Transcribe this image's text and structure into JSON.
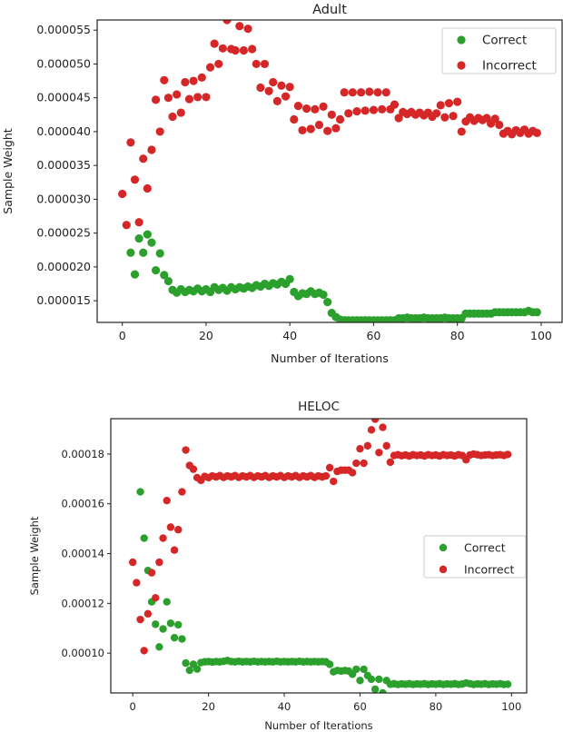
{
  "chart_data": [
    {
      "type": "scatter",
      "title": "Adult",
      "xlabel": "Number of Iterations",
      "ylabel": "Sample Weight",
      "xlim": [
        -6,
        105
      ],
      "ylim": [
        1.18e-05,
        5.65e-05
      ],
      "xticks": [
        0,
        20,
        40,
        60,
        80,
        100
      ],
      "xtick_labels": [
        "0",
        "20",
        "40",
        "60",
        "80",
        "100"
      ],
      "yticks": [
        1.5e-05,
        2e-05,
        2.5e-05,
        3e-05,
        3.5e-05,
        4e-05,
        4.5e-05,
        5e-05,
        5.5e-05
      ],
      "ytick_labels": [
        "0.000015",
        "0.000020",
        "0.000025",
        "0.000030",
        "0.000035",
        "0.000040",
        "0.000045",
        "0.000050",
        "0.000055"
      ],
      "legend_position": "top-right",
      "grid": false,
      "series": [
        {
          "name": "Correct",
          "color": "#2ca02c",
          "values": [
            null,
            null,
            2.21e-05,
            1.89e-05,
            2.42e-05,
            2.21e-05,
            2.48e-05,
            2.36e-05,
            1.95e-05,
            2.2e-05,
            1.88e-05,
            1.79e-05,
            1.66e-05,
            1.62e-05,
            1.67e-05,
            1.63e-05,
            1.66e-05,
            1.64e-05,
            1.68e-05,
            1.64e-05,
            1.67e-05,
            1.63e-05,
            1.7e-05,
            1.66e-05,
            1.69e-05,
            1.65e-05,
            1.7e-05,
            1.67e-05,
            1.7e-05,
            1.68e-05,
            1.71e-05,
            1.69e-05,
            1.73e-05,
            1.71e-05,
            1.75e-05,
            1.72e-05,
            1.76e-05,
            1.74e-05,
            1.78e-05,
            1.75e-05,
            1.82e-05,
            1.63e-05,
            1.57e-05,
            1.61e-05,
            1.6e-05,
            1.64e-05,
            1.6e-05,
            1.62e-05,
            1.59e-05,
            1.48e-05,
            1.32e-05,
            1.26e-05,
            1.22e-05,
            1.21e-05,
            1.21e-05,
            1.21e-05,
            1.21e-05,
            1.21e-05,
            1.21e-05,
            1.21e-05,
            1.21e-05,
            1.21e-05,
            1.21e-05,
            1.21e-05,
            1.21e-05,
            1.21e-05,
            1.24e-05,
            1.24e-05,
            1.25e-05,
            1.24e-05,
            1.24e-05,
            1.24e-05,
            1.25e-05,
            1.24e-05,
            1.24e-05,
            1.24e-05,
            1.24e-05,
            1.25e-05,
            1.24e-05,
            1.24e-05,
            1.24e-05,
            1.24e-05,
            1.31e-05,
            1.31e-05,
            1.31e-05,
            1.31e-05,
            1.31e-05,
            1.31e-05,
            1.31e-05,
            1.33e-05,
            1.33e-05,
            1.33e-05,
            1.33e-05,
            1.33e-05,
            1.33e-05,
            1.33e-05,
            1.33e-05,
            1.35e-05,
            1.33e-05,
            1.33e-05
          ]
        },
        {
          "name": "Incorrect",
          "color": "#d62728",
          "values": [
            3.08e-05,
            2.62e-05,
            3.84e-05,
            3.29e-05,
            2.66e-05,
            3.6e-05,
            3.16e-05,
            3.73e-05,
            4.47e-05,
            4e-05,
            4.76e-05,
            4.5e-05,
            4.22e-05,
            4.55e-05,
            4.28e-05,
            4.73e-05,
            4.48e-05,
            4.75e-05,
            4.51e-05,
            4.8e-05,
            4.51e-05,
            4.95e-05,
            5.3e-05,
            5e-05,
            5.23e-05,
            5.65e-05,
            5.22e-05,
            5.2e-05,
            5.56e-05,
            5.2e-05,
            5.52e-05,
            5.22e-05,
            5e-05,
            4.65e-05,
            5e-05,
            4.6e-05,
            4.73e-05,
            4.45e-05,
            4.68e-05,
            4.52e-05,
            4.66e-05,
            4.18e-05,
            4.38e-05,
            4.02e-05,
            4.34e-05,
            4.04e-05,
            4.33e-05,
            4.1e-05,
            4.37e-05,
            4.01e-05,
            4.25e-05,
            4.05e-05,
            4.18e-05,
            4.58e-05,
            4.27e-05,
            4.58e-05,
            4.3e-05,
            4.58e-05,
            4.31e-05,
            4.59e-05,
            4.32e-05,
            4.58e-05,
            4.33e-05,
            4.58e-05,
            4.33e-05,
            4.4e-05,
            4.2e-05,
            4.29e-05,
            4.26e-05,
            4.29e-05,
            4.25e-05,
            4.28e-05,
            4.24e-05,
            4.28e-05,
            4.22e-05,
            4.27e-05,
            4.39e-05,
            4.21e-05,
            4.42e-05,
            4.23e-05,
            4.44e-05,
            4e-05,
            4.15e-05,
            4.21e-05,
            4.16e-05,
            4.2e-05,
            4.17e-05,
            4.2e-05,
            4.12e-05,
            4.19e-05,
            4.1e-05,
            3.97e-05,
            4.01e-05,
            3.96e-05,
            4.02e-05,
            3.98e-05,
            4.03e-05,
            3.97e-05,
            4.01e-05,
            3.98e-05
          ]
        }
      ]
    },
    {
      "type": "scatter",
      "title": "HELOC",
      "xlabel": "Number of Iterations",
      "ylabel": "Sample Weight",
      "xlim": [
        -5.8,
        104
      ],
      "ylim": [
        8.4e-05,
        0.0001942
      ],
      "xticks": [
        0,
        20,
        40,
        60,
        80,
        100
      ],
      "xtick_labels": [
        "0",
        "20",
        "40",
        "60",
        "80",
        "100"
      ],
      "yticks": [
        0.0001,
        0.00012,
        0.00014,
        0.00016,
        0.00018
      ],
      "ytick_labels": [
        "0.00010",
        "0.00012",
        "0.00014",
        "0.00016",
        "0.00018"
      ],
      "legend_position": "center-right",
      "grid": false,
      "series": [
        {
          "name": "Correct",
          "color": "#2ca02c",
          "values": [
            null,
            null,
            0.0001648,
            0.0001462,
            0.0001332,
            0.0001206,
            0.0001116,
            0.0001025,
            0.0001097,
            0.0001206,
            0.000112,
            0.0001062,
            0.0001114,
            0.0001057,
            9.6e-05,
            9.31e-05,
            9.55e-05,
            9.36e-05,
            9.62e-05,
            9.65e-05,
            9.66e-05,
            9.64e-05,
            9.66e-05,
            9.65e-05,
            9.67e-05,
            9.7e-05,
            9.66e-05,
            9.65e-05,
            9.67e-05,
            9.65e-05,
            9.66e-05,
            9.65e-05,
            9.67e-05,
            9.65e-05,
            9.66e-05,
            9.65e-05,
            9.66e-05,
            9.65e-05,
            9.67e-05,
            9.65e-05,
            9.66e-05,
            9.65e-05,
            9.66e-05,
            9.65e-05,
            9.67e-05,
            9.65e-05,
            9.66e-05,
            9.65e-05,
            9.66e-05,
            9.65e-05,
            9.66e-05,
            9.65e-05,
            9.55e-05,
            9.25e-05,
            9.3e-05,
            9.28e-05,
            9.3e-05,
            9.28e-05,
            9.15e-05,
            9.35e-05,
            8.9e-05,
            9.35e-05,
            9.1e-05,
            8.95e-05,
            8.55e-05,
            8.95e-05,
            8.4e-05,
            8.9e-05,
            8.75e-05,
            8.77e-05,
            8.74e-05,
            8.76e-05,
            8.75e-05,
            8.77e-05,
            8.74e-05,
            8.76e-05,
            8.75e-05,
            8.77e-05,
            8.74e-05,
            8.76e-05,
            8.75e-05,
            8.77e-05,
            8.74e-05,
            8.76e-05,
            8.75e-05,
            8.77e-05,
            8.74e-05,
            8.76e-05,
            8.8e-05,
            8.77e-05,
            8.74e-05,
            8.76e-05,
            8.75e-05,
            8.77e-05,
            8.74e-05,
            8.76e-05,
            8.75e-05,
            8.77e-05,
            8.74e-05,
            8.75e-05
          ]
        },
        {
          "name": "Incorrect",
          "color": "#d62728",
          "values": [
            0.0001365,
            0.0001283,
            0.0001135,
            0.000101,
            0.0001158,
            0.0001323,
            0.0001222,
            0.0001365,
            0.0001462,
            0.0001613,
            0.0001506,
            0.0001414,
            0.0001496,
            0.0001648,
            0.0001816,
            0.0001754,
            0.0001739,
            0.0001705,
            0.0001694,
            0.000171,
            0.0001705,
            0.0001712,
            0.0001708,
            0.0001713,
            0.0001706,
            0.0001712,
            0.0001708,
            0.0001713,
            0.0001706,
            0.0001712,
            0.0001708,
            0.0001713,
            0.0001706,
            0.0001712,
            0.0001708,
            0.0001713,
            0.0001706,
            0.0001712,
            0.0001708,
            0.0001713,
            0.0001706,
            0.0001712,
            0.0001708,
            0.0001713,
            0.0001706,
            0.0001712,
            0.0001708,
            0.0001713,
            0.0001706,
            0.0001712,
            0.0001708,
            0.0001712,
            0.0001745,
            0.000169,
            0.000173,
            0.0001735,
            0.0001735,
            0.0001735,
            0.0001725,
            0.0001763,
            0.0001821,
            0.0001763,
            0.0001833,
            0.0001897,
            0.000194,
            0.0001806,
            0.0001907,
            0.0001833,
            0.0001767,
            0.0001794,
            0.0001797,
            0.0001793,
            0.0001796,
            0.0001792,
            0.0001797,
            0.0001794,
            0.0001796,
            0.0001792,
            0.0001797,
            0.0001794,
            0.0001796,
            0.0001792,
            0.0001797,
            0.0001794,
            0.0001796,
            0.0001792,
            0.0001797,
            0.0001794,
            0.0001777,
            0.0001796,
            0.00018,
            0.0001797,
            0.0001794,
            0.0001796,
            0.0001797,
            0.0001794,
            0.0001796,
            0.0001797,
            0.0001794,
            0.0001798
          ]
        }
      ]
    }
  ]
}
